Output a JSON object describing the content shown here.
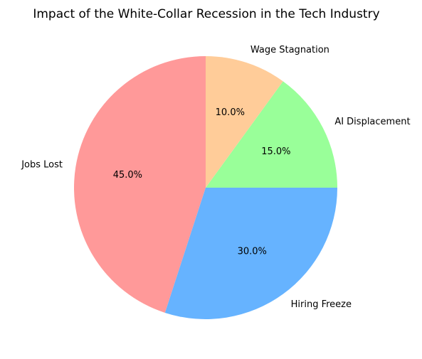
{
  "chart_data": {
    "type": "pie",
    "title": "Impact of the White-Collar Recession in the Tech Industry",
    "start_angle_deg": 90,
    "direction": "counterclockwise",
    "slices": [
      {
        "label": "Jobs Lost",
        "value": 45.0,
        "pct_text": "45.0%",
        "color": "#ff9999"
      },
      {
        "label": "Hiring Freeze",
        "value": 30.0,
        "pct_text": "30.0%",
        "color": "#66b3ff"
      },
      {
        "label": "AI Displacement",
        "value": 15.0,
        "pct_text": "15.0%",
        "color": "#99ff99"
      },
      {
        "label": "Wage Stagnation",
        "value": 10.0,
        "pct_text": "10.0%",
        "color": "#ffcc99"
      }
    ],
    "legend": false
  }
}
